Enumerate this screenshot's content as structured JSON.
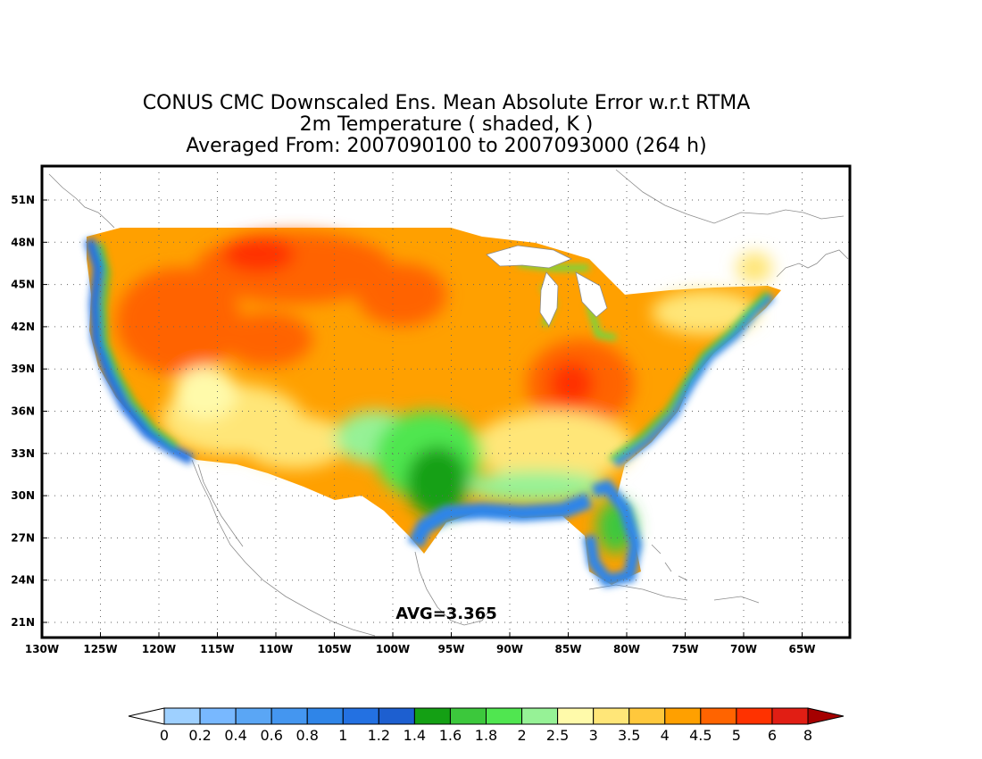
{
  "title": {
    "line1": "CONUS CMC Downscaled Ens. Mean Absolute Error w.r.t RTMA",
    "line2": "2m Temperature ( shaded, K )",
    "line3": "Averaged From: 2007090100 to 2007093000 (264 h)"
  },
  "annotation": "AVG=3.365",
  "axes": {
    "lat_ticks": [
      "51N",
      "48N",
      "45N",
      "42N",
      "39N",
      "36N",
      "33N",
      "30N",
      "27N",
      "24N",
      "21N"
    ],
    "lon_ticks": [
      "130W",
      "125W",
      "120W",
      "115W",
      "110W",
      "105W",
      "100W",
      "95W",
      "90W",
      "85W",
      "80W",
      "75W",
      "70W",
      "65W"
    ],
    "grid": "dotted"
  },
  "colorbar": {
    "labels": [
      "0",
      "0.2",
      "0.4",
      "0.6",
      "0.8",
      "1",
      "1.2",
      "1.4",
      "1.6",
      "1.8",
      "2",
      "2.5",
      "3",
      "3.5",
      "4",
      "4.5",
      "5",
      "6",
      "8"
    ],
    "colors": [
      "#9ed0ff",
      "#78b8ff",
      "#5aa6f5",
      "#4496f0",
      "#2f85e8",
      "#2371e2",
      "#1d5fd0",
      "#14a014",
      "#3cc83c",
      "#50e650",
      "#96f296",
      "#fffaaa",
      "#ffe678",
      "#ffc83c",
      "#ffa000",
      "#ff6400",
      "#ff3200",
      "#e11e14",
      "#a50000"
    ],
    "under_color": "#ffffff",
    "over_color": "#a50000"
  },
  "palette": {
    "frame": "#000000",
    "coast": "#8c8c8c",
    "grid": "#666666"
  }
}
